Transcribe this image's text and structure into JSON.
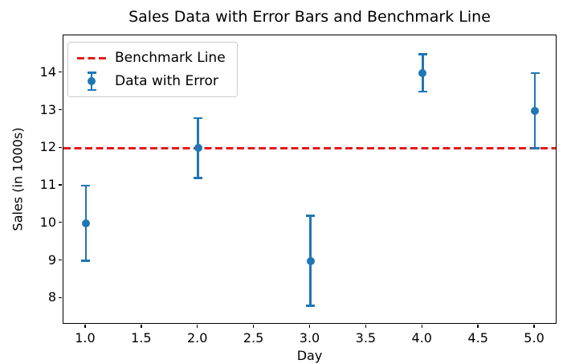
{
  "figure": {
    "background": "#ffffff"
  },
  "colors": {
    "marker_blue": "#1f77b4",
    "benchmark_red": "#e31a1a",
    "legend_border": "#cccccc",
    "axis_black": "#000000"
  },
  "legend": {
    "benchmark_label": "Benchmark Line",
    "data_label": "Data with Error"
  },
  "chart_data": {
    "type": "scatter",
    "title": "Sales Data with Error Bars and Benchmark Line",
    "xlabel": "Day",
    "ylabel": "Sales (in 1000s)",
    "x": [
      1,
      2,
      3,
      4,
      5
    ],
    "y": [
      10,
      12,
      9,
      14,
      13
    ],
    "yerr": [
      1.0,
      0.8,
      1.2,
      0.5,
      1.0
    ],
    "series": [
      {
        "name": "Data with Error",
        "values": [
          10,
          12,
          9,
          14,
          13
        ],
        "errors": [
          1.0,
          0.8,
          1.2,
          0.5,
          1.0
        ],
        "color": "#1f77b4",
        "marker": "circle-with-errorbars"
      }
    ],
    "benchmark": {
      "label": "Benchmark Line",
      "value": 12,
      "color": "#e31a1a",
      "style": "dashed"
    },
    "xlim": [
      0.8,
      5.2
    ],
    "ylim": [
      7.3,
      15.0
    ],
    "xticks": [
      1.0,
      1.5,
      2.0,
      2.5,
      3.0,
      3.5,
      4.0,
      4.5,
      5.0
    ],
    "xtick_labels": [
      "1.0",
      "1.5",
      "2.0",
      "2.5",
      "3.0",
      "3.5",
      "4.0",
      "4.5",
      "5.0"
    ],
    "yticks": [
      8,
      9,
      10,
      11,
      12,
      13,
      14
    ],
    "ytick_labels": [
      "8",
      "9",
      "10",
      "11",
      "12",
      "13",
      "14"
    ],
    "grid": false,
    "legend_position": "upper left"
  }
}
